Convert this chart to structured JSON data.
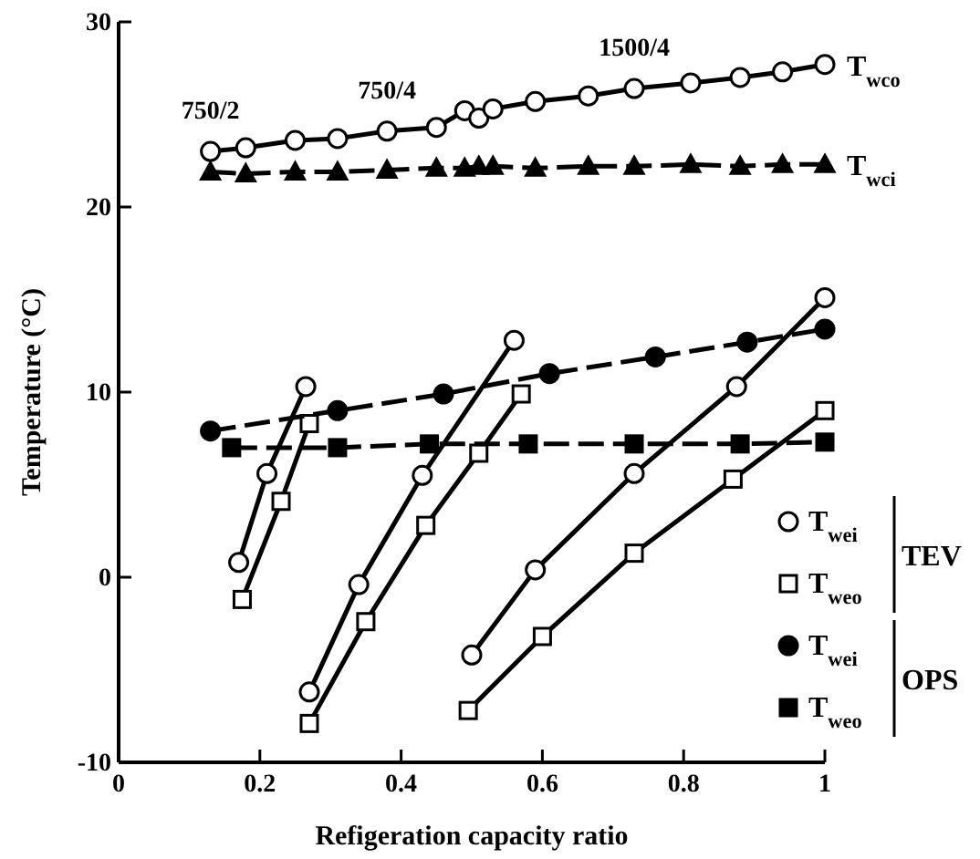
{
  "chart_data": {
    "type": "line",
    "xlabel": "Refigeration capacity ratio",
    "ylabel": "Temperature (°C)",
    "xlim": [
      0,
      1
    ],
    "xticks": [
      0,
      0.2,
      0.4,
      0.6,
      0.8,
      1
    ],
    "ylim": [
      -10,
      30
    ],
    "yticks": [
      -10,
      0,
      10,
      20,
      30
    ],
    "grid": false,
    "legend": "bottom right",
    "annotations": [
      {
        "text": "750/2",
        "x": 0.13,
        "y": 23.0
      },
      {
        "text": "750/4",
        "x": 0.38,
        "y": 24.1
      },
      {
        "text": "1500/4",
        "x": 0.73,
        "y": 26.4
      },
      {
        "text": "T$_{wco}$",
        "x": 1.0,
        "y": 27.7
      },
      {
        "text": "T$_{wci}$",
        "x": 1.0,
        "y": 22.3
      },
      "TEV",
      "OPS"
    ],
    "series": [
      {
        "color": "#000000",
        "marker": "circle-open",
        "line_style": "solid",
        "x": [
          0.13,
          0.18,
          0.25,
          0.31,
          0.38,
          0.45,
          0.49,
          0.51,
          0.53,
          0.59,
          0.665,
          0.73,
          0.81,
          0.88,
          0.94,
          1.0
        ],
        "values": [
          23.0,
          23.2,
          23.6,
          23.7,
          24.1,
          24.3,
          25.2,
          24.8,
          25.3,
          25.7,
          26.0,
          26.4,
          26.7,
          27.0,
          27.3,
          27.7
        ]
      },
      {
        "color": "#000000",
        "marker": "triangle",
        "line_style": "dashed",
        "x": [
          0.13,
          0.18,
          0.25,
          0.31,
          0.38,
          0.45,
          0.49,
          0.51,
          0.53,
          0.59,
          0.665,
          0.73,
          0.81,
          0.88,
          0.94,
          1.0
        ],
        "values": [
          21.9,
          21.8,
          21.9,
          21.9,
          22.0,
          22.1,
          22.1,
          22.2,
          22.2,
          22.1,
          22.2,
          22.2,
          22.3,
          22.2,
          22.3,
          22.3
        ]
      },
      {
        "name": "T$_{wei}$",
        "color": "#000000",
        "marker": "circle-open",
        "line_style": "solid",
        "x": [
          0.17,
          0.21,
          0.265
        ],
        "values": [
          0.8,
          5.6,
          10.3
        ]
      },
      {
        "color": "#000000",
        "marker": "circle-open",
        "line_style": "solid",
        "x": [
          0.27,
          0.34,
          0.43,
          0.56
        ],
        "values": [
          -6.2,
          -0.4,
          5.5,
          12.8
        ]
      },
      {
        "color": "#000000",
        "marker": "circle-open",
        "line_style": "solid",
        "x": [
          0.5,
          0.59,
          0.73,
          0.875,
          1.0
        ],
        "values": [
          -4.2,
          0.4,
          5.6,
          10.3,
          15.1
        ]
      },
      {
        "name": "T$_{weo}$",
        "color": "#000000",
        "marker": "square-open",
        "line_style": "solid",
        "x": [
          0.175,
          0.23,
          0.27
        ],
        "values": [
          -1.2,
          4.1,
          8.3
        ]
      },
      {
        "color": "#000000",
        "marker": "square-open",
        "line_style": "solid",
        "x": [
          0.27,
          0.35,
          0.435,
          0.51,
          0.57
        ],
        "values": [
          -7.9,
          -2.4,
          2.8,
          6.7,
          9.9
        ]
      },
      {
        "color": "#000000",
        "marker": "square-open",
        "line_style": "solid",
        "x": [
          0.495,
          0.6,
          0.73,
          0.87,
          1.0
        ],
        "values": [
          -7.2,
          -3.2,
          1.3,
          5.3,
          9.0
        ]
      },
      {
        "name": "T$_{wei}$",
        "color": "#000000",
        "marker": "circle",
        "line_style": "dashed",
        "x": [
          0.13,
          0.31,
          0.46,
          0.61,
          0.76,
          0.89,
          1.0
        ],
        "values": [
          7.9,
          9.0,
          9.9,
          11.0,
          11.9,
          12.7,
          13.4
        ]
      },
      {
        "name": "T$_{weo}$",
        "color": "#000000",
        "marker": "square",
        "line_style": "dashed",
        "x": [
          0.16,
          0.31,
          0.44,
          0.58,
          0.73,
          0.88,
          1.0
        ],
        "values": [
          7.0,
          7.0,
          7.2,
          7.2,
          7.2,
          7.2,
          7.3
        ]
      }
    ]
  }
}
